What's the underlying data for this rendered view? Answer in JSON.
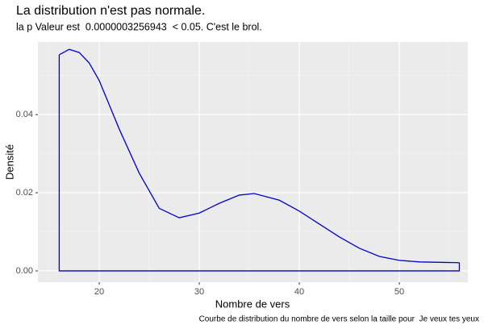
{
  "chart_data": {
    "type": "density",
    "title": "La distribution n'est pas normale.",
    "subtitle": "la p Valeur est  0.0000003256943  < 0.05. C'est le brol.",
    "x_label": "Nombre de vers",
    "y_label": "Densité",
    "caption": "Courbe de distribution du nombre de vers selon la taille pour  Je veux tes yeux",
    "x": [
      16,
      17,
      18,
      19,
      20,
      22,
      24,
      26,
      28,
      30,
      32,
      34,
      35.5,
      38,
      40,
      42,
      44,
      46,
      48,
      50,
      52,
      54,
      56
    ],
    "values": [
      0.0553,
      0.0567,
      0.0559,
      0.0532,
      0.0487,
      0.0363,
      0.025,
      0.016,
      0.0136,
      0.0148,
      0.0173,
      0.0194,
      0.0198,
      0.0181,
      0.0153,
      0.012,
      0.0087,
      0.0058,
      0.0037,
      0.0027,
      0.0023,
      0.0022,
      0.0021
    ],
    "color": "#0000cc",
    "xlim": [
      13.87,
      56.85
    ],
    "ylim": [
      -0.0029,
      0.0586
    ],
    "xticks": [
      20,
      30,
      40,
      50
    ],
    "yticks": [
      {
        "value": 0,
        "label": "0.00"
      },
      {
        "value": 0.02,
        "label": "0.02"
      },
      {
        "value": 0.04,
        "label": "0.04"
      }
    ],
    "x_minor_ticks": [
      15,
      25,
      35,
      45,
      55
    ],
    "y_minor_ticks": [
      0.01,
      0.03,
      0.05
    ],
    "grid": true
  }
}
